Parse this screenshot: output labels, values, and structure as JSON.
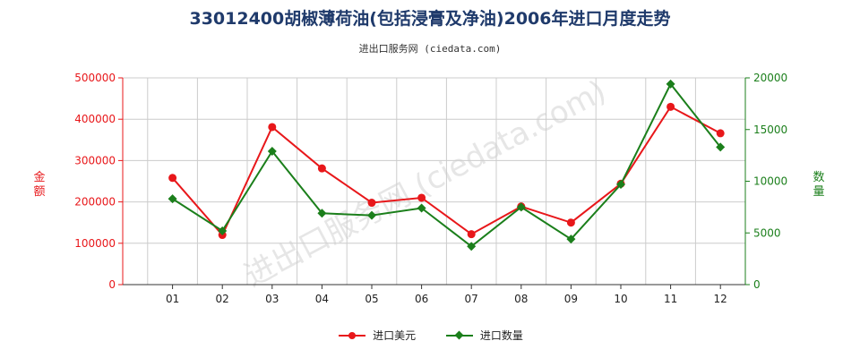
{
  "title": "33012400胡椒薄荷油(包括浸膏及净油)2006年进口月度走势",
  "subtitle": "进出口服务网 (ciedata.com)",
  "watermark": "进出口服务网 (ciedata.com)",
  "colors": {
    "usd": "#e8171a",
    "qty": "#1b7f1b",
    "grid": "#cccccc",
    "left_axis": "#e8171a",
    "right_axis": "#1b7f1b"
  },
  "chart_data": {
    "type": "line",
    "categories": [
      "01",
      "02",
      "03",
      "04",
      "05",
      "06",
      "07",
      "08",
      "09",
      "10",
      "11",
      "12"
    ],
    "y_left": {
      "label": "金额",
      "ylim": [
        0,
        500000
      ],
      "ticks": [
        "0",
        "100000",
        "200000",
        "300000",
        "400000",
        "500000"
      ]
    },
    "y_right": {
      "label": "数量",
      "ylim": [
        0,
        20000
      ],
      "ticks": [
        "0",
        "5000",
        "10000",
        "15000",
        "20000"
      ]
    },
    "series": [
      {
        "name": "进口美元",
        "axis": "left",
        "values": [
          258000,
          120000,
          381000,
          281000,
          198000,
          210000,
          122000,
          189000,
          150000,
          244000,
          430000,
          366000
        ]
      },
      {
        "name": "进口数量",
        "axis": "right",
        "values": [
          8300,
          5200,
          12900,
          6900,
          6700,
          7400,
          3700,
          7500,
          4400,
          9700,
          19400,
          13300
        ]
      }
    ],
    "grid": true,
    "legend_position": "bottom"
  }
}
